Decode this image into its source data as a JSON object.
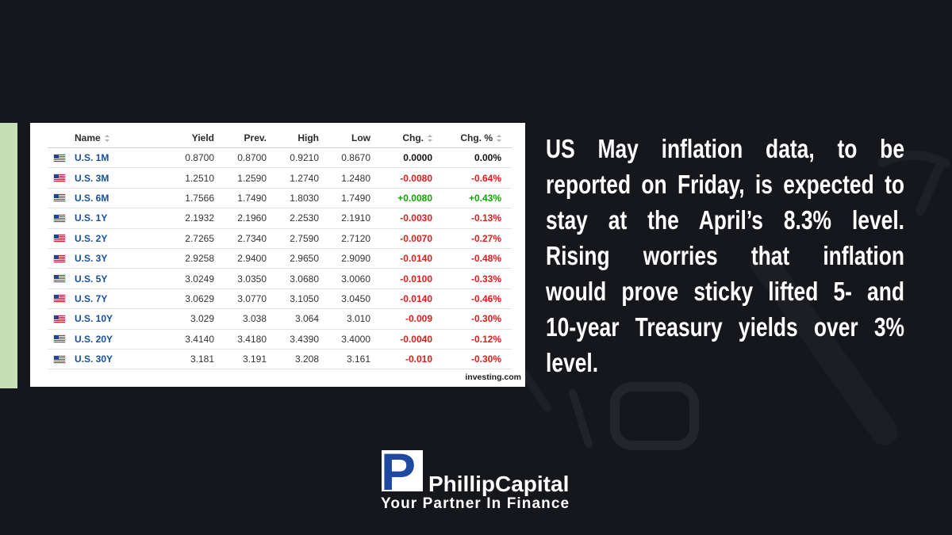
{
  "colors": {
    "background": "#15171c",
    "accent_bar": "#c5e0b4",
    "card": "#ffffff",
    "name_link": "#184e9a",
    "cell_text": "#333333",
    "gain": "#0ea600",
    "loss": "#e01b1b",
    "unchanged": "#111111",
    "commentary_text": "#ffffff",
    "logo_blue": "#1f48a0"
  },
  "icons": {
    "flag": "us-flag-icon",
    "sort": "sort-icon"
  },
  "table": {
    "headers": {
      "name": "Name",
      "yield": "Yield",
      "prev": "Prev.",
      "high": "High",
      "low": "Low",
      "chg": "Chg.",
      "chg_pct": "Chg. %"
    },
    "rows": [
      {
        "name": "U.S. 1M",
        "yield": "0.8700",
        "prev": "0.8700",
        "high": "0.9210",
        "low": "0.8670",
        "chg": "0.0000",
        "chg_pct": "0.00%"
      },
      {
        "name": "U.S. 3M",
        "yield": "1.2510",
        "prev": "1.2590",
        "high": "1.2740",
        "low": "1.2480",
        "chg": "-0.0080",
        "chg_pct": "-0.64%"
      },
      {
        "name": "U.S. 6M",
        "yield": "1.7566",
        "prev": "1.7490",
        "high": "1.8030",
        "low": "1.7490",
        "chg": "+0.0080",
        "chg_pct": "+0.43%"
      },
      {
        "name": "U.S. 1Y",
        "yield": "2.1932",
        "prev": "2.1960",
        "high": "2.2530",
        "low": "2.1910",
        "chg": "-0.0030",
        "chg_pct": "-0.13%"
      },
      {
        "name": "U.S. 2Y",
        "yield": "2.7265",
        "prev": "2.7340",
        "high": "2.7590",
        "low": "2.7120",
        "chg": "-0.0070",
        "chg_pct": "-0.27%"
      },
      {
        "name": "U.S. 3Y",
        "yield": "2.9258",
        "prev": "2.9400",
        "high": "2.9650",
        "low": "2.9090",
        "chg": "-0.0140",
        "chg_pct": "-0.48%"
      },
      {
        "name": "U.S. 5Y",
        "yield": "3.0249",
        "prev": "3.0350",
        "high": "3.0680",
        "low": "3.0060",
        "chg": "-0.0100",
        "chg_pct": "-0.33%"
      },
      {
        "name": "U.S. 7Y",
        "yield": "3.0629",
        "prev": "3.0770",
        "high": "3.1050",
        "low": "3.0450",
        "chg": "-0.0140",
        "chg_pct": "-0.46%"
      },
      {
        "name": "U.S. 10Y",
        "yield": "3.029",
        "prev": "3.038",
        "high": "3.064",
        "low": "3.010",
        "chg": "-0.009",
        "chg_pct": "-0.30%"
      },
      {
        "name": "U.S. 20Y",
        "yield": "3.4140",
        "prev": "3.4180",
        "high": "3.4390",
        "low": "3.4000",
        "chg": "-0.0040",
        "chg_pct": "-0.12%"
      },
      {
        "name": "U.S. 30Y",
        "yield": "3.181",
        "prev": "3.191",
        "high": "3.208",
        "low": "3.161",
        "chg": "-0.010",
        "chg_pct": "-0.30%"
      }
    ],
    "source": "investing.com"
  },
  "commentary": {
    "lines": [
      "US May inflation data, to be",
      "reported on Friday, is expected to",
      "stay at the April’s 8.3% level.",
      "Rising worries that inflation",
      "would prove sticky lifted 5- and",
      "10-year Treasury yields over 3%",
      "level."
    ]
  },
  "logo": {
    "mark": "P",
    "name": "PhillipCapital",
    "tagline": "Your Partner In Finance"
  }
}
